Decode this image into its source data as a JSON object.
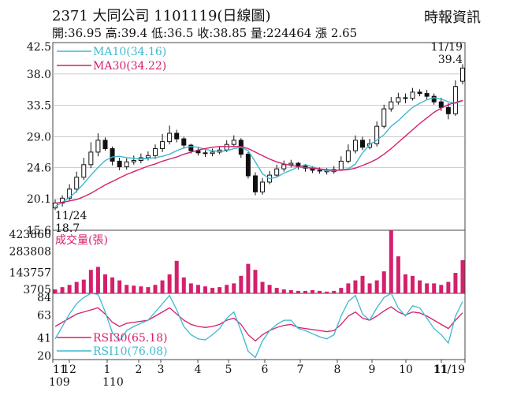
{
  "header": {
    "title": "2371 大同公司 1101119(日線圖)",
    "source": "時報資訊",
    "ohlc": "開:36.95 高:39.4 低:36.5 收:38.85 量:224464 漲 2.65"
  },
  "colors": {
    "candle": "#111111",
    "ma10": "#3fb8d0",
    "ma30": "#d4206c",
    "volume": "#d4206c",
    "rsi30": "#d4206c",
    "rsi10": "#3fb8d0",
    "grid": "#bfbfbf",
    "axis": "#444444"
  },
  "chart_data": [
    {
      "type": "line",
      "panel": "price",
      "ylim": [
        15.6,
        42.5
      ],
      "y_ticks": [
        "42.5",
        "38.0",
        "33.5",
        "29.0",
        "24.6",
        "20.1",
        "15.6"
      ],
      "y_tick_values": [
        42.5,
        38.0,
        33.5,
        29.0,
        24.6,
        20.1,
        15.6
      ],
      "grid": true,
      "legend": "top-left",
      "series": [
        {
          "name": "MA10(34.16)",
          "values": [
            19.0,
            19.6,
            20.3,
            21.2,
            22.3,
            23.5,
            24.6,
            25.6,
            26.1,
            26.2,
            26.0,
            25.9,
            25.8,
            25.9,
            26.0,
            26.2,
            26.5,
            27.0,
            27.4,
            27.6,
            27.5,
            27.2,
            27.0,
            26.9,
            27.0,
            27.3,
            27.5,
            27.0,
            25.4,
            23.7,
            23.0,
            23.2,
            23.8,
            24.2,
            24.7,
            25.0,
            24.7,
            24.4,
            24.1,
            24.1,
            24.3,
            24.4,
            25.1,
            26.7,
            27.9,
            28.5,
            29.3,
            30.5,
            31.3,
            32.3,
            33.2,
            33.8,
            34.3,
            34.6,
            34.4,
            34.0,
            33.8,
            34.16
          ]
        },
        {
          "name": "MA30(34.22)",
          "values": [
            19.5,
            19.6,
            19.8,
            20.0,
            20.4,
            20.9,
            21.5,
            22.1,
            22.6,
            23.1,
            23.6,
            24.0,
            24.4,
            24.8,
            25.1,
            25.5,
            25.8,
            26.1,
            26.5,
            26.8,
            27.1,
            27.3,
            27.5,
            27.6,
            27.6,
            27.6,
            27.6,
            27.3,
            26.8,
            26.3,
            25.8,
            25.4,
            25.1,
            24.9,
            24.7,
            24.6,
            24.5,
            24.4,
            24.3,
            24.2,
            24.2,
            24.3,
            24.5,
            24.9,
            25.3,
            25.8,
            26.5,
            27.3,
            28.2,
            29.1,
            30.0,
            30.9,
            31.7,
            32.5,
            33.1,
            33.6,
            33.9,
            34.22
          ]
        }
      ],
      "ohlc": {
        "open": [
          18.8,
          19.5,
          20.2,
          21.5,
          23.2,
          25.0,
          26.8,
          28.5,
          27.3,
          25.5,
          24.7,
          25.4,
          25.6,
          26.0,
          26.3,
          27.3,
          28.3,
          29.5,
          28.7,
          27.8,
          27.0,
          26.7,
          26.6,
          26.8,
          27.1,
          27.9,
          28.5,
          26.5,
          23.4,
          21.1,
          22.5,
          23.5,
          24.4,
          25.0,
          25.2,
          24.8,
          24.5,
          24.2,
          24.1,
          24.0,
          24.3,
          25.5,
          27.0,
          28.5,
          27.5,
          28.0,
          30.5,
          33.0,
          34.0,
          34.6,
          34.5,
          35.4,
          35.2,
          34.8,
          34.0,
          33.2,
          32.3,
          36.95
        ],
        "close": [
          19.5,
          20.2,
          21.5,
          23.2,
          25.0,
          26.8,
          28.5,
          27.3,
          25.5,
          24.7,
          25.4,
          25.6,
          26.0,
          26.3,
          27.3,
          28.3,
          29.5,
          28.7,
          27.8,
          27.0,
          26.7,
          26.6,
          26.8,
          27.1,
          27.9,
          28.5,
          26.5,
          23.4,
          21.1,
          22.5,
          23.5,
          24.4,
          25.0,
          25.2,
          24.8,
          24.5,
          24.2,
          24.1,
          24.0,
          24.3,
          25.5,
          27.0,
          28.5,
          27.5,
          28.0,
          30.5,
          33.0,
          34.0,
          34.6,
          34.5,
          35.4,
          35.2,
          34.8,
          34.0,
          33.2,
          32.3,
          36.2,
          38.85
        ],
        "high": [
          20.0,
          20.6,
          22.2,
          24.0,
          26.0,
          28.2,
          29.5,
          28.9,
          27.6,
          26.0,
          25.9,
          26.3,
          26.6,
          26.9,
          27.9,
          29.4,
          30.6,
          30.0,
          29.0,
          28.0,
          27.4,
          27.1,
          27.3,
          27.6,
          28.5,
          29.2,
          28.8,
          26.8,
          23.9,
          23.1,
          24.1,
          25.0,
          25.6,
          25.7,
          25.4,
          25.1,
          24.8,
          24.6,
          24.5,
          24.8,
          26.2,
          27.9,
          29.2,
          29.0,
          28.7,
          31.2,
          33.6,
          34.7,
          35.3,
          35.2,
          36.0,
          35.8,
          35.7,
          35.2,
          34.6,
          33.8,
          37.1,
          39.4
        ],
        "low": [
          18.5,
          19.0,
          19.9,
          21.0,
          22.8,
          24.5,
          26.2,
          27.0,
          24.9,
          24.2,
          24.3,
          25.0,
          25.2,
          25.6,
          25.8,
          26.8,
          27.9,
          28.2,
          27.3,
          26.6,
          26.3,
          26.1,
          26.2,
          26.5,
          26.8,
          27.5,
          26.0,
          23.0,
          20.6,
          20.7,
          22.2,
          23.2,
          24.0,
          24.6,
          24.3,
          24.0,
          23.8,
          23.7,
          23.6,
          23.7,
          24.1,
          25.2,
          26.6,
          27.1,
          27.2,
          27.6,
          30.2,
          32.6,
          33.6,
          33.8,
          34.2,
          34.8,
          34.4,
          33.6,
          32.7,
          31.5,
          32.0,
          36.5
        ]
      },
      "annotations": [
        {
          "text": "11/24",
          "value": "18.7"
        },
        {
          "text": "11/19",
          "value": "39.4"
        }
      ]
    },
    {
      "type": "bar",
      "panel": "volume",
      "ylim": [
        3705,
        423860
      ],
      "y_ticks": [
        "423860",
        "283808",
        "143757",
        "3705"
      ],
      "y_tick_values": [
        423860,
        283808,
        143757,
        3705
      ],
      "legend": "top-left",
      "series": [
        {
          "name": "成交量(張)",
          "values": [
            30000,
            45000,
            60000,
            80000,
            95000,
            160000,
            180000,
            130000,
            110000,
            90000,
            60000,
            55000,
            50000,
            45000,
            60000,
            90000,
            130000,
            220000,
            110000,
            70000,
            60000,
            50000,
            40000,
            45000,
            60000,
            70000,
            120000,
            200000,
            160000,
            80000,
            60000,
            40000,
            30000,
            25000,
            20000,
            20000,
            25000,
            20000,
            15000,
            20000,
            40000,
            70000,
            90000,
            120000,
            70000,
            90000,
            150000,
            430000,
            250000,
            130000,
            120000,
            90000,
            70000,
            70000,
            60000,
            80000,
            140000,
            224464
          ]
        }
      ]
    },
    {
      "type": "line",
      "panel": "rsi",
      "ylim": [
        20,
        84
      ],
      "y_ticks": [
        "84",
        "63",
        "41",
        "20"
      ],
      "y_tick_values": [
        84,
        63,
        41,
        20
      ],
      "legend": "bottom-left",
      "series": [
        {
          "name": "RSI30(65.18)",
          "values": [
            52,
            56,
            60,
            64,
            66,
            68,
            70,
            64,
            56,
            52,
            55,
            56,
            57,
            58,
            62,
            66,
            70,
            64,
            58,
            54,
            52,
            51,
            52,
            54,
            58,
            60,
            54,
            44,
            38,
            44,
            48,
            51,
            53,
            54,
            51,
            50,
            49,
            48,
            47,
            48,
            54,
            62,
            66,
            60,
            58,
            62,
            67,
            71,
            66,
            63,
            66,
            65,
            62,
            58,
            54,
            50,
            58,
            65.18
          ]
        },
        {
          "name": "RSI10(76.08)",
          "values": [
            40,
            52,
            64,
            74,
            80,
            84,
            83,
            66,
            46,
            38,
            48,
            52,
            55,
            58,
            66,
            74,
            82,
            68,
            52,
            44,
            40,
            39,
            44,
            50,
            60,
            66,
            48,
            28,
            22,
            38,
            48,
            54,
            58,
            58,
            50,
            48,
            45,
            42,
            40,
            44,
            62,
            76,
            82,
            64,
            58,
            70,
            80,
            84,
            70,
            62,
            72,
            70,
            60,
            50,
            44,
            36,
            62,
            76.08
          ]
        }
      ]
    }
  ],
  "x_axis": {
    "month_labels": [
      "11",
      "12",
      "1",
      "2",
      "3",
      "4",
      "5",
      "6",
      "7",
      "8",
      "9",
      "10",
      "11",
      "11/19"
    ],
    "year_labels": [
      "109",
      "110"
    ]
  }
}
